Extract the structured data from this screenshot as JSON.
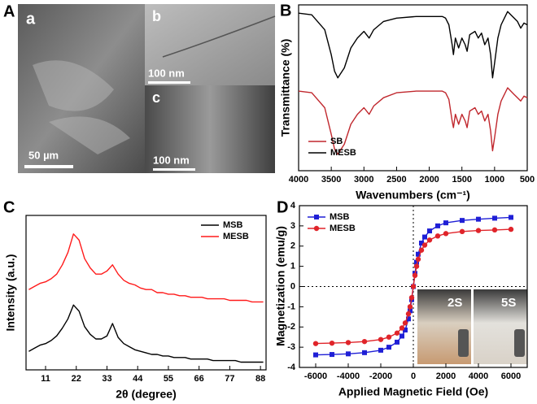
{
  "figure": {
    "panel_labels": [
      "A",
      "B",
      "C",
      "D"
    ]
  },
  "micrographs": {
    "labels": [
      "a",
      "b",
      "c"
    ],
    "scale_bars": [
      "50 µm",
      "100 nm",
      "100 nm"
    ]
  },
  "chart_data": [
    {
      "type": "line",
      "y_label": "Transmittance (%)",
      "x_label": "Wavenumbers (cm⁻¹)",
      "xlim": [
        4000,
        500
      ],
      "xticks": [
        4000,
        3500,
        3000,
        2500,
        2000,
        1500,
        1000,
        500
      ],
      "ylim": [
        0,
        100
      ],
      "legend": "lower left",
      "x": [
        4000,
        3800,
        3600,
        3500,
        3450,
        3400,
        3300,
        3200,
        3100,
        3000,
        2920,
        2850,
        2700,
        2500,
        2200,
        2000,
        1800,
        1750,
        1700,
        1650,
        1630,
        1600,
        1550,
        1500,
        1450,
        1420,
        1380,
        1300,
        1250,
        1200,
        1150,
        1100,
        1060,
        1030,
        1000,
        950,
        900,
        850,
        800,
        750,
        700,
        650,
        600,
        550,
        500
      ],
      "series": [
        {
          "name": "SB",
          "color": "#c0272d",
          "values": [
            48,
            47,
            38,
            22,
            13,
            10,
            16,
            28,
            34,
            38,
            34,
            39,
            44,
            47,
            48,
            48,
            48,
            47,
            43,
            30,
            26,
            34,
            28,
            34,
            30,
            26,
            36,
            38,
            34,
            36,
            30,
            34,
            24,
            12,
            20,
            34,
            42,
            46,
            50,
            48,
            46,
            44,
            42,
            45,
            44
          ]
        },
        {
          "name": "MESB",
          "color": "#000000",
          "values": [
            95,
            94,
            85,
            70,
            60,
            56,
            62,
            74,
            80,
            84,
            80,
            85,
            90,
            92,
            93,
            93,
            93,
            92,
            88,
            76,
            70,
            80,
            74,
            80,
            76,
            72,
            82,
            84,
            80,
            83,
            76,
            80,
            70,
            56,
            65,
            80,
            88,
            92,
            96,
            94,
            92,
            90,
            86,
            89,
            88
          ]
        }
      ]
    },
    {
      "type": "line",
      "y_label": "Intensity (a.u.)",
      "x_label": "2θ (degree)",
      "xlim": [
        4,
        90
      ],
      "xticks": [
        11,
        22,
        33,
        44,
        55,
        66,
        77,
        88
      ],
      "ylim": [
        0,
        100
      ],
      "legend": "upper right",
      "x": [
        5,
        7,
        9,
        11,
        13,
        15,
        17,
        19,
        21,
        23,
        25,
        27,
        29,
        31,
        33,
        35,
        37,
        39,
        41,
        43,
        45,
        47,
        49,
        51,
        53,
        55,
        57,
        59,
        61,
        63,
        65,
        67,
        69,
        71,
        73,
        75,
        77,
        79,
        81,
        83,
        85,
        87,
        89
      ],
      "series": [
        {
          "name": "MSB",
          "color": "#000000",
          "values": [
            12,
            14,
            16,
            17,
            19,
            22,
            27,
            33,
            42,
            38,
            28,
            23,
            20,
            20,
            22,
            30,
            21,
            17,
            15,
            13,
            12,
            11,
            10,
            10,
            9,
            9,
            8,
            8,
            8,
            7,
            7,
            7,
            7,
            6,
            6,
            6,
            6,
            6,
            5,
            5,
            5,
            5,
            5
          ]
        },
        {
          "name": "MESB",
          "color": "#ff1a1a",
          "values": [
            52,
            54,
            56,
            57,
            59,
            62,
            68,
            76,
            88,
            84,
            72,
            66,
            62,
            62,
            64,
            68,
            62,
            58,
            56,
            55,
            53,
            52,
            52,
            50,
            50,
            49,
            49,
            48,
            48,
            47,
            47,
            47,
            46,
            46,
            46,
            46,
            45,
            45,
            45,
            45,
            44,
            44,
            44
          ]
        }
      ]
    },
    {
      "type": "line",
      "y_label": "Magnetization (emu/g)",
      "x_label": "Applied Magnetic Field (Oe)",
      "xlim": [
        -7000,
        7000
      ],
      "xticks": [
        -6000,
        -4000,
        -2000,
        0,
        2000,
        4000,
        6000
      ],
      "ylim": [
        -4,
        4
      ],
      "yticks": [
        -4,
        -3,
        -2,
        -1,
        0,
        1,
        2,
        3,
        4
      ],
      "zero_lines": true,
      "legend": "upper left",
      "inset_labels": [
        "2S",
        "5S"
      ],
      "x": [
        -6000,
        -5000,
        -4000,
        -3000,
        -2000,
        -1500,
        -1000,
        -700,
        -500,
        -300,
        -200,
        -100,
        0,
        100,
        200,
        300,
        500,
        700,
        1000,
        1500,
        2000,
        3000,
        4000,
        5000,
        6000
      ],
      "series": [
        {
          "name": "MSB",
          "color": "#1f1fd6",
          "marker": "square",
          "values": [
            -3.38,
            -3.36,
            -3.33,
            -3.27,
            -3.15,
            -3.0,
            -2.75,
            -2.45,
            -2.15,
            -1.6,
            -1.2,
            -0.65,
            0,
            0.65,
            1.2,
            1.6,
            2.15,
            2.45,
            2.75,
            3.0,
            3.15,
            3.27,
            3.33,
            3.38,
            3.42
          ]
        },
        {
          "name": "MESB",
          "color": "#e0242a",
          "marker": "circle",
          "values": [
            -2.82,
            -2.8,
            -2.77,
            -2.72,
            -2.62,
            -2.5,
            -2.3,
            -2.05,
            -1.8,
            -1.35,
            -1.0,
            -0.55,
            0,
            0.55,
            1.0,
            1.35,
            1.8,
            2.05,
            2.3,
            2.5,
            2.62,
            2.72,
            2.77,
            2.8,
            2.83
          ]
        }
      ]
    }
  ]
}
